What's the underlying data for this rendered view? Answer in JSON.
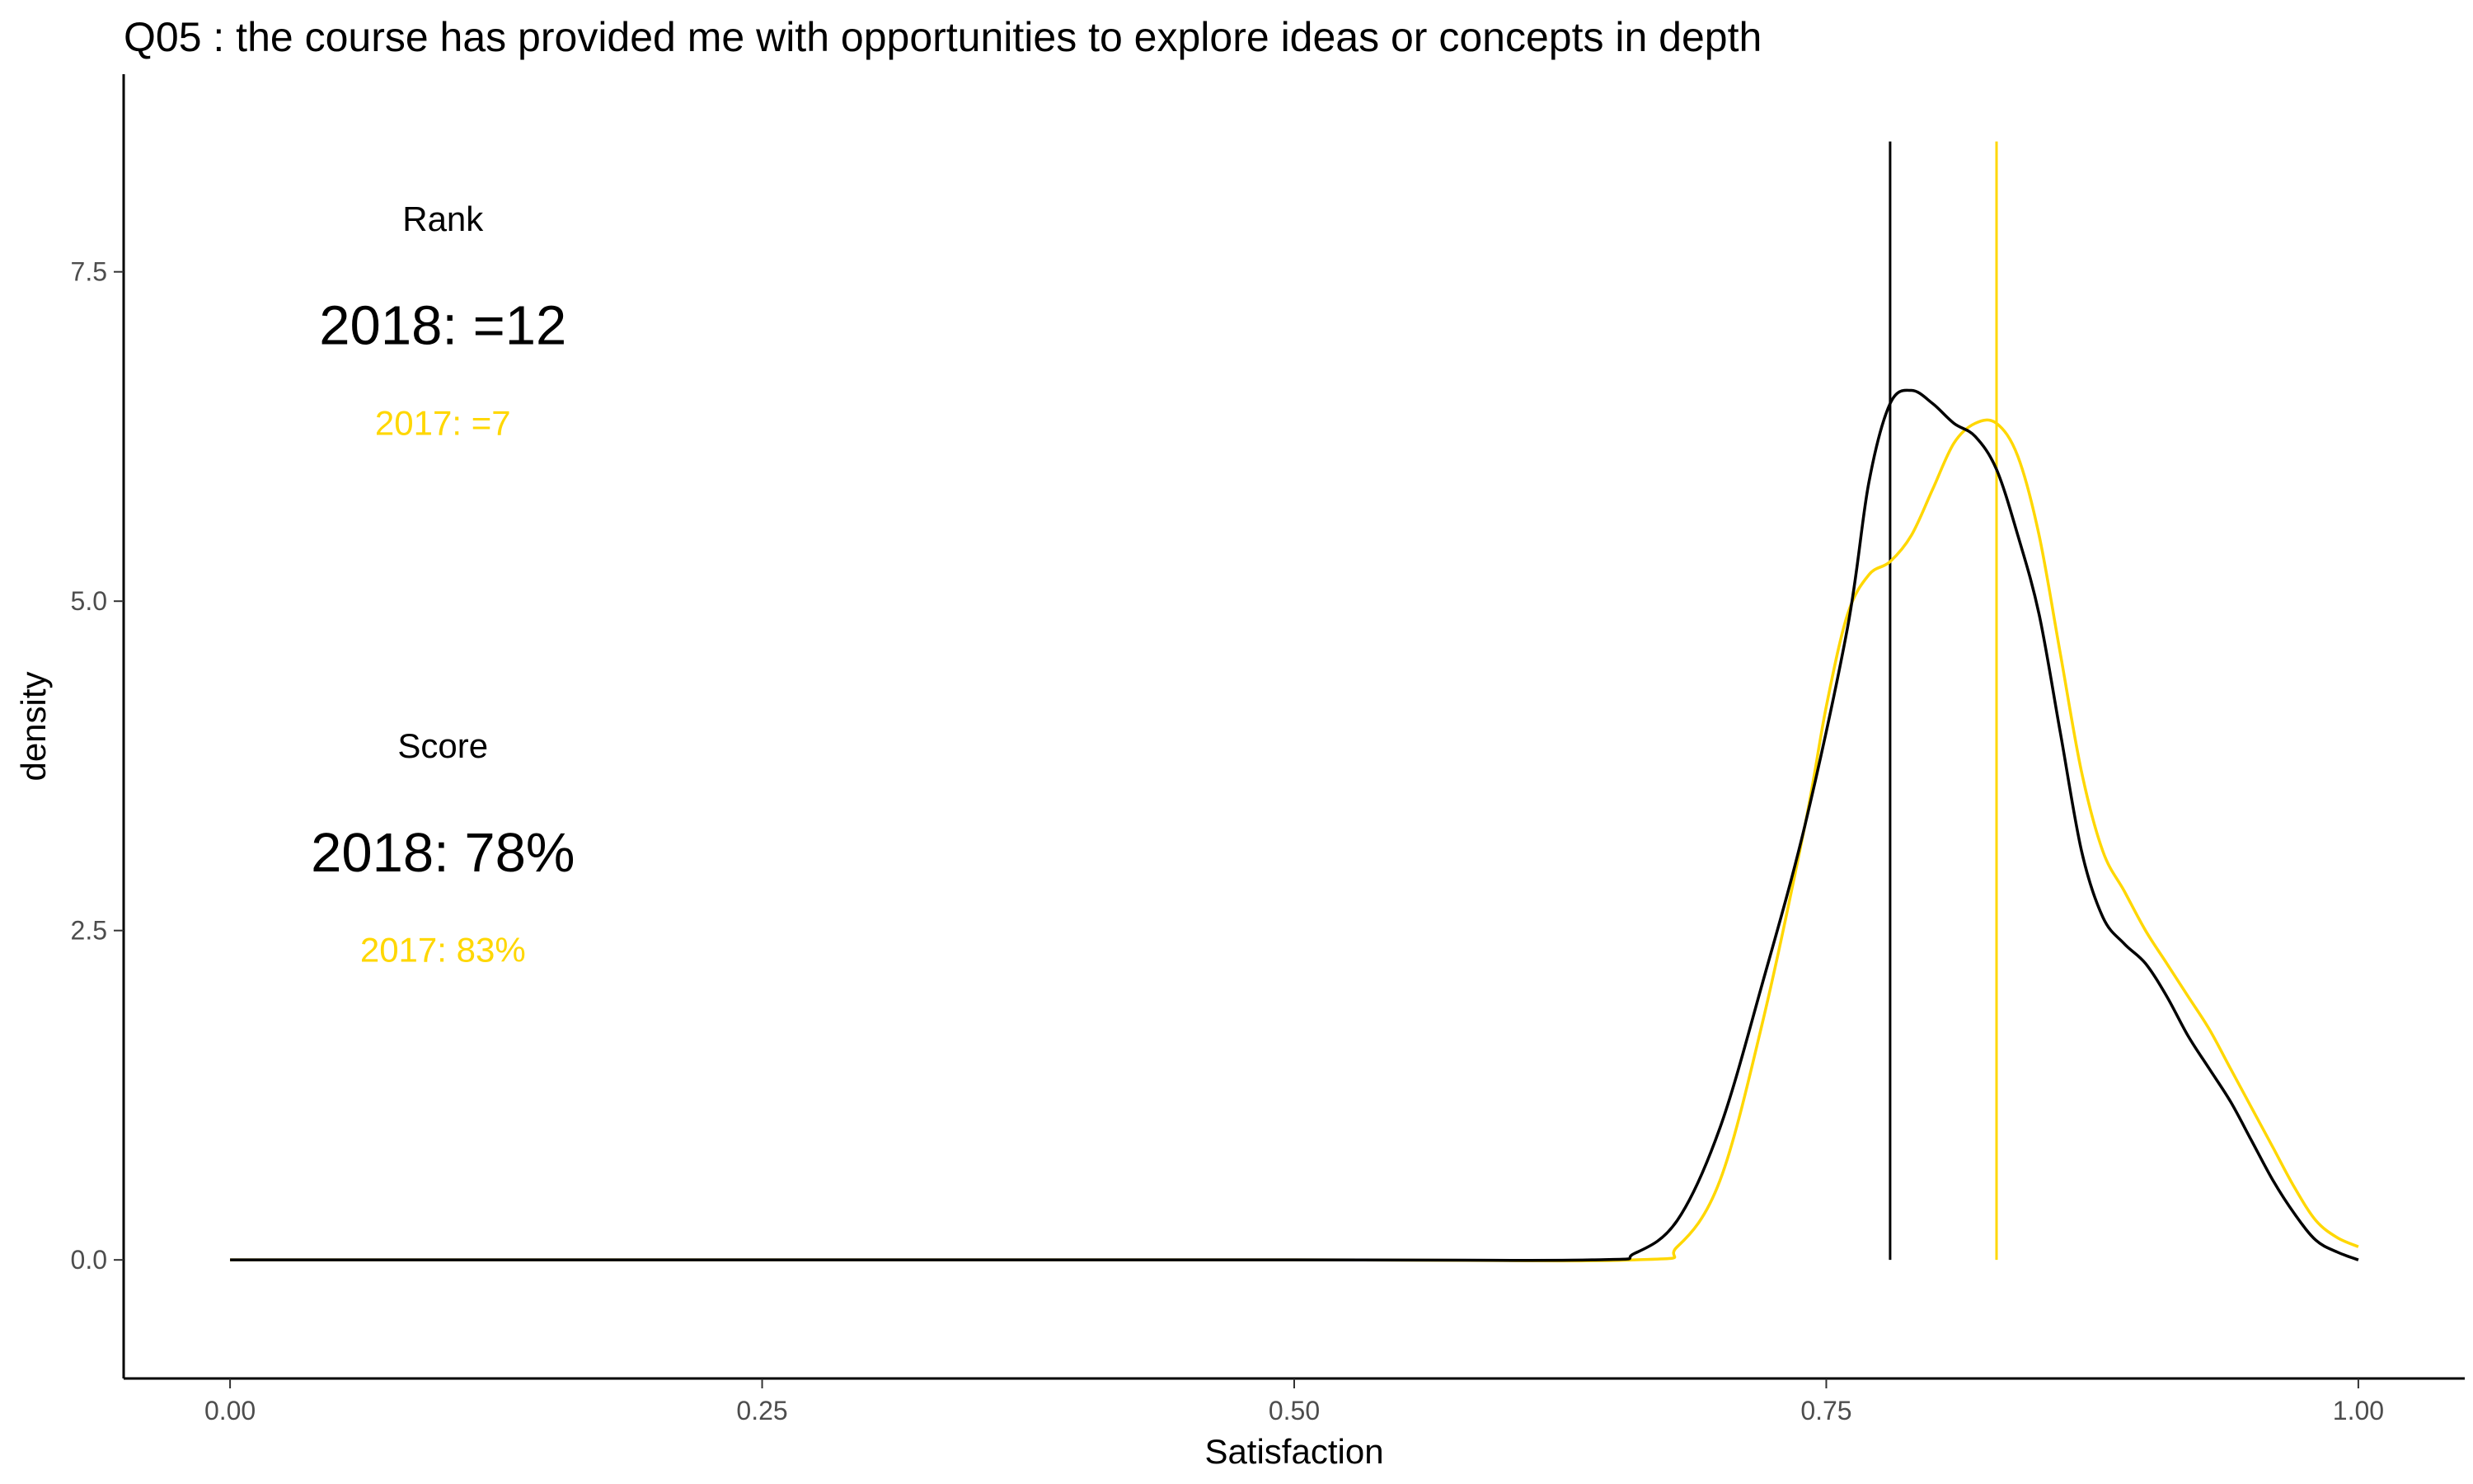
{
  "chart_data": {
    "type": "line",
    "title": "Q05 :   the course has provided me with opportunities to explore ideas or concepts in depth",
    "xlabel": "Satisfaction",
    "ylabel": "density",
    "xlim": [
      -0.05,
      1.05
    ],
    "ylim": [
      -0.9,
      9.0
    ],
    "x_ticks": [
      0.0,
      0.25,
      0.5,
      0.75,
      1.0
    ],
    "x_tick_labels": [
      "0.00",
      "0.25",
      "0.50",
      "0.75",
      "1.00"
    ],
    "y_ticks": [
      0.0,
      2.5,
      5.0,
      7.5
    ],
    "y_tick_labels": [
      "0.0",
      "2.5",
      "5.0",
      "7.5"
    ],
    "grid": false,
    "colors": {
      "2018": "#000000",
      "2017": "#FFD700"
    },
    "series": [
      {
        "color": "#000000",
        "x": [
          0.0,
          0.5,
          0.64,
          0.66,
          0.68,
          0.7,
          0.72,
          0.74,
          0.76,
          0.77,
          0.78,
          0.79,
          0.8,
          0.81,
          0.82,
          0.83,
          0.84,
          0.85,
          0.86,
          0.87,
          0.88,
          0.89,
          0.9,
          0.91,
          0.92,
          0.93,
          0.94,
          0.95,
          0.96,
          0.97,
          0.98,
          0.99,
          1.0
        ],
        "values": [
          0.0,
          0.0,
          0.0,
          0.05,
          0.3,
          1.0,
          2.1,
          3.3,
          4.8,
          5.9,
          6.5,
          6.6,
          6.5,
          6.35,
          6.25,
          6.0,
          5.5,
          4.9,
          4.0,
          3.1,
          2.6,
          2.4,
          2.25,
          2.0,
          1.7,
          1.45,
          1.2,
          0.9,
          0.6,
          0.35,
          0.15,
          0.06,
          0.0
        ]
      },
      {
        "color": "#FFD700",
        "x": [
          0.0,
          0.5,
          0.66,
          0.68,
          0.7,
          0.72,
          0.74,
          0.75,
          0.76,
          0.77,
          0.78,
          0.79,
          0.8,
          0.81,
          0.82,
          0.83,
          0.84,
          0.85,
          0.86,
          0.87,
          0.88,
          0.89,
          0.9,
          0.91,
          0.92,
          0.93,
          0.94,
          0.95,
          0.96,
          0.97,
          0.98,
          0.99,
          1.0
        ],
        "values": [
          0.0,
          0.0,
          0.0,
          0.1,
          0.6,
          1.8,
          3.3,
          4.2,
          4.9,
          5.2,
          5.3,
          5.5,
          5.85,
          6.2,
          6.35,
          6.35,
          6.1,
          5.5,
          4.6,
          3.7,
          3.1,
          2.8,
          2.5,
          2.25,
          2.0,
          1.75,
          1.45,
          1.15,
          0.85,
          0.55,
          0.3,
          0.17,
          0.1
        ]
      }
    ],
    "vlines": [
      {
        "x": 0.78,
        "color": "#000000"
      },
      {
        "x": 0.83,
        "color": "#FFD700"
      }
    ],
    "annotations": {
      "rank_heading": "Rank",
      "rank_2018": "2018: =12",
      "rank_2017": "2017: =7",
      "score_heading": "Score",
      "score_2018": "2018: 78%",
      "score_2017": "2017: 83%"
    }
  }
}
